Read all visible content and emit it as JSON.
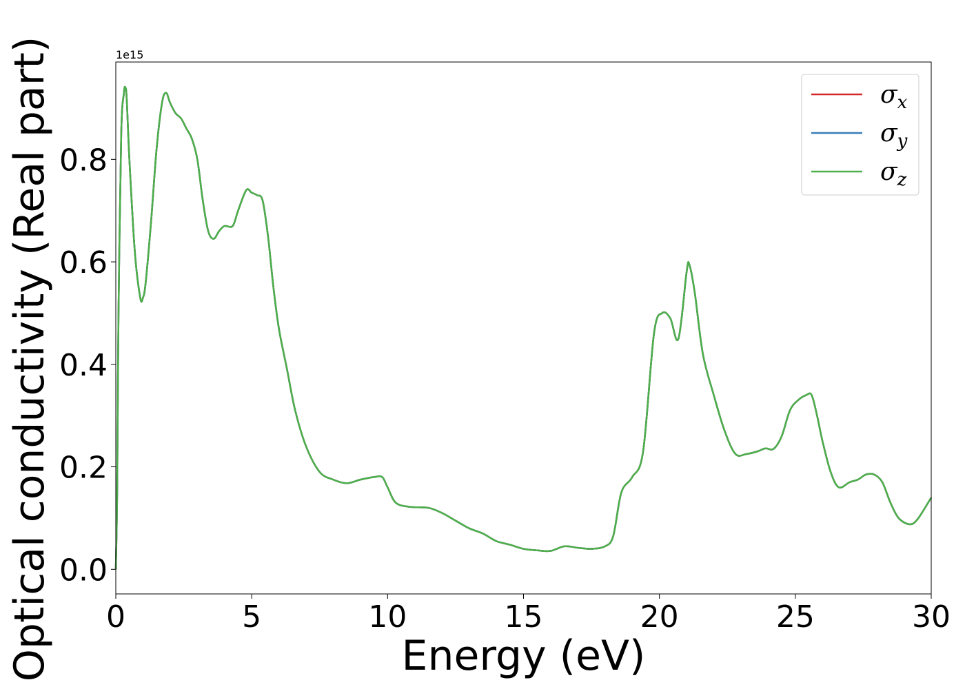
{
  "chart_data": {
    "type": "line",
    "xlabel": "Energy (eV)",
    "ylabel": "Optical conductivity (Real part)",
    "y_offset_text": "1e15",
    "y_scale_factor": 1000000000000000.0,
    "xlim": [
      0,
      30
    ],
    "ylim": [
      -0.048,
      0.99
    ],
    "x_ticks": [
      0,
      5,
      10,
      15,
      20,
      25,
      30
    ],
    "x_tick_labels": [
      "0",
      "5",
      "10",
      "15",
      "20",
      "25",
      "30"
    ],
    "y_ticks": [
      0.0,
      0.2,
      0.4,
      0.6,
      0.8
    ],
    "y_tick_labels": [
      "0.0",
      "0.2",
      "0.4",
      "0.6",
      "0.8"
    ],
    "grid": false,
    "legend_position": "top-right",
    "series": [
      {
        "name": "σx",
        "legend_base": "σ",
        "legend_sub": "x",
        "color": "#d62728",
        "x": [
          0,
          0.05,
          0.1,
          0.2,
          0.3,
          0.35,
          0.4,
          0.5,
          0.7,
          0.9,
          1.0,
          1.1,
          1.3,
          1.5,
          1.7,
          1.85,
          2.0,
          2.2,
          2.4,
          2.6,
          2.8,
          3.0,
          3.2,
          3.4,
          3.6,
          3.8,
          4.0,
          4.3,
          4.5,
          4.8,
          5.0,
          5.2,
          5.4,
          5.6,
          5.8,
          6.0,
          6.3,
          6.6,
          7.0,
          7.5,
          8.0,
          8.5,
          9.0,
          9.5,
          9.8,
          10.0,
          10.3,
          10.8,
          11.5,
          12.0,
          12.5,
          13.0,
          13.5,
          14.0,
          14.5,
          15.0,
          15.5,
          16.0,
          16.5,
          17.0,
          17.5,
          18.0,
          18.3,
          18.6,
          19.0,
          19.4,
          19.8,
          20.1,
          20.4,
          20.7,
          21.0,
          21.1,
          21.3,
          21.6,
          22.0,
          22.4,
          22.8,
          23.2,
          23.6,
          23.9,
          24.2,
          24.5,
          24.8,
          25.1,
          25.4,
          25.6,
          25.8,
          26.0,
          26.3,
          26.6,
          27.0,
          27.3,
          27.6,
          27.9,
          28.2,
          28.5,
          28.8,
          29.2,
          29.5,
          30.0
        ],
        "values": [
          0.0,
          0.15,
          0.5,
          0.85,
          0.93,
          0.94,
          0.92,
          0.8,
          0.62,
          0.53,
          0.53,
          0.56,
          0.68,
          0.82,
          0.91,
          0.93,
          0.91,
          0.89,
          0.88,
          0.86,
          0.84,
          0.8,
          0.72,
          0.66,
          0.645,
          0.66,
          0.67,
          0.67,
          0.7,
          0.74,
          0.735,
          0.73,
          0.72,
          0.65,
          0.55,
          0.47,
          0.39,
          0.31,
          0.24,
          0.19,
          0.175,
          0.168,
          0.175,
          0.18,
          0.18,
          0.16,
          0.13,
          0.122,
          0.12,
          0.11,
          0.095,
          0.08,
          0.07,
          0.055,
          0.048,
          0.04,
          0.037,
          0.036,
          0.045,
          0.042,
          0.04,
          0.045,
          0.065,
          0.15,
          0.18,
          0.23,
          0.46,
          0.5,
          0.49,
          0.45,
          0.58,
          0.595,
          0.54,
          0.42,
          0.34,
          0.27,
          0.225,
          0.225,
          0.23,
          0.236,
          0.235,
          0.26,
          0.31,
          0.33,
          0.34,
          0.34,
          0.3,
          0.25,
          0.19,
          0.16,
          0.17,
          0.175,
          0.185,
          0.185,
          0.17,
          0.13,
          0.1,
          0.088,
          0.098,
          0.14
        ]
      },
      {
        "name": "σy",
        "legend_base": "σ",
        "legend_sub": "y",
        "color": "#377eb8",
        "x": [
          0,
          0.05,
          0.1,
          0.2,
          0.3,
          0.35,
          0.4,
          0.5,
          0.7,
          0.9,
          1.0,
          1.1,
          1.3,
          1.5,
          1.7,
          1.85,
          2.0,
          2.2,
          2.4,
          2.6,
          2.8,
          3.0,
          3.2,
          3.4,
          3.6,
          3.8,
          4.0,
          4.3,
          4.5,
          4.8,
          5.0,
          5.2,
          5.4,
          5.6,
          5.8,
          6.0,
          6.3,
          6.6,
          7.0,
          7.5,
          8.0,
          8.5,
          9.0,
          9.5,
          9.8,
          10.0,
          10.3,
          10.8,
          11.5,
          12.0,
          12.5,
          13.0,
          13.5,
          14.0,
          14.5,
          15.0,
          15.5,
          16.0,
          16.5,
          17.0,
          17.5,
          18.0,
          18.3,
          18.6,
          19.0,
          19.4,
          19.8,
          20.1,
          20.4,
          20.7,
          21.0,
          21.1,
          21.3,
          21.6,
          22.0,
          22.4,
          22.8,
          23.2,
          23.6,
          23.9,
          24.2,
          24.5,
          24.8,
          25.1,
          25.4,
          25.6,
          25.8,
          26.0,
          26.3,
          26.6,
          27.0,
          27.3,
          27.6,
          27.9,
          28.2,
          28.5,
          28.8,
          29.2,
          29.5,
          30.0
        ],
        "values": [
          0.0,
          0.15,
          0.5,
          0.85,
          0.93,
          0.94,
          0.92,
          0.8,
          0.62,
          0.53,
          0.53,
          0.56,
          0.68,
          0.82,
          0.91,
          0.93,
          0.91,
          0.89,
          0.88,
          0.86,
          0.84,
          0.8,
          0.72,
          0.66,
          0.645,
          0.66,
          0.67,
          0.67,
          0.7,
          0.74,
          0.735,
          0.73,
          0.72,
          0.65,
          0.55,
          0.47,
          0.39,
          0.31,
          0.24,
          0.19,
          0.175,
          0.168,
          0.175,
          0.18,
          0.18,
          0.16,
          0.13,
          0.122,
          0.12,
          0.11,
          0.095,
          0.08,
          0.07,
          0.055,
          0.048,
          0.04,
          0.037,
          0.036,
          0.045,
          0.042,
          0.04,
          0.045,
          0.065,
          0.15,
          0.18,
          0.23,
          0.46,
          0.5,
          0.49,
          0.45,
          0.58,
          0.595,
          0.54,
          0.42,
          0.34,
          0.27,
          0.225,
          0.225,
          0.23,
          0.236,
          0.235,
          0.26,
          0.31,
          0.33,
          0.34,
          0.34,
          0.3,
          0.25,
          0.19,
          0.16,
          0.17,
          0.175,
          0.185,
          0.185,
          0.17,
          0.13,
          0.1,
          0.088,
          0.098,
          0.14
        ]
      },
      {
        "name": "σz",
        "legend_base": "σ",
        "legend_sub": "z",
        "color": "#4daf4a",
        "x": [
          0,
          0.05,
          0.1,
          0.2,
          0.3,
          0.35,
          0.4,
          0.5,
          0.7,
          0.9,
          1.0,
          1.1,
          1.3,
          1.5,
          1.7,
          1.85,
          2.0,
          2.2,
          2.4,
          2.6,
          2.8,
          3.0,
          3.2,
          3.4,
          3.6,
          3.8,
          4.0,
          4.3,
          4.5,
          4.8,
          5.0,
          5.2,
          5.4,
          5.6,
          5.8,
          6.0,
          6.3,
          6.6,
          7.0,
          7.5,
          8.0,
          8.5,
          9.0,
          9.5,
          9.8,
          10.0,
          10.3,
          10.8,
          11.5,
          12.0,
          12.5,
          13.0,
          13.5,
          14.0,
          14.5,
          15.0,
          15.5,
          16.0,
          16.5,
          17.0,
          17.5,
          18.0,
          18.3,
          18.6,
          19.0,
          19.4,
          19.8,
          20.1,
          20.4,
          20.7,
          21.0,
          21.1,
          21.3,
          21.6,
          22.0,
          22.4,
          22.8,
          23.2,
          23.6,
          23.9,
          24.2,
          24.5,
          24.8,
          25.1,
          25.4,
          25.6,
          25.8,
          26.0,
          26.3,
          26.6,
          27.0,
          27.3,
          27.6,
          27.9,
          28.2,
          28.5,
          28.8,
          29.2,
          29.5,
          30.0
        ],
        "values": [
          0.0,
          0.15,
          0.5,
          0.85,
          0.93,
          0.94,
          0.92,
          0.8,
          0.62,
          0.53,
          0.53,
          0.56,
          0.68,
          0.82,
          0.91,
          0.93,
          0.91,
          0.89,
          0.88,
          0.86,
          0.84,
          0.8,
          0.72,
          0.66,
          0.645,
          0.66,
          0.67,
          0.67,
          0.7,
          0.74,
          0.735,
          0.73,
          0.72,
          0.65,
          0.55,
          0.47,
          0.39,
          0.31,
          0.24,
          0.19,
          0.175,
          0.168,
          0.175,
          0.18,
          0.18,
          0.16,
          0.13,
          0.122,
          0.12,
          0.11,
          0.095,
          0.08,
          0.07,
          0.055,
          0.048,
          0.04,
          0.037,
          0.036,
          0.045,
          0.042,
          0.04,
          0.045,
          0.065,
          0.15,
          0.18,
          0.23,
          0.46,
          0.5,
          0.49,
          0.45,
          0.58,
          0.595,
          0.54,
          0.42,
          0.34,
          0.27,
          0.225,
          0.225,
          0.23,
          0.236,
          0.235,
          0.26,
          0.31,
          0.33,
          0.34,
          0.34,
          0.3,
          0.25,
          0.19,
          0.16,
          0.17,
          0.175,
          0.185,
          0.185,
          0.17,
          0.13,
          0.1,
          0.088,
          0.098,
          0.14
        ]
      }
    ]
  }
}
